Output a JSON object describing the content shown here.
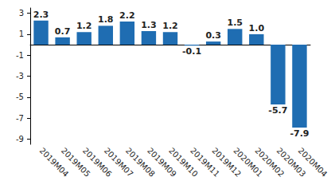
{
  "chart_data": {
    "type": "bar",
    "categories": [
      "2019M04",
      "2019M05",
      "2019M06",
      "2019M07",
      "2019M08",
      "2019M09",
      "2019M10",
      "2019M11",
      "2019M12",
      "2020M01",
      "2020M02",
      "2020M03",
      "2020M04"
    ],
    "values": [
      2.3,
      0.7,
      1.2,
      1.8,
      2.2,
      1.3,
      1.2,
      -0.1,
      0.3,
      1.5,
      1.0,
      -5.7,
      -7.9
    ],
    "value_labels": [
      "2.3",
      "0.7",
      "1.2",
      "1.8",
      "2.2",
      "1.3",
      "1.2",
      "-0.1",
      "0.3",
      "1.5",
      "1.0",
      "-5.7",
      "-7.9"
    ],
    "color": "#1f6db2",
    "ylim": [
      -9.5,
      3.5
    ],
    "yticks": [
      -9,
      -7,
      -5,
      -3,
      -1,
      1,
      3
    ],
    "grid": false,
    "data_labels": true
  }
}
